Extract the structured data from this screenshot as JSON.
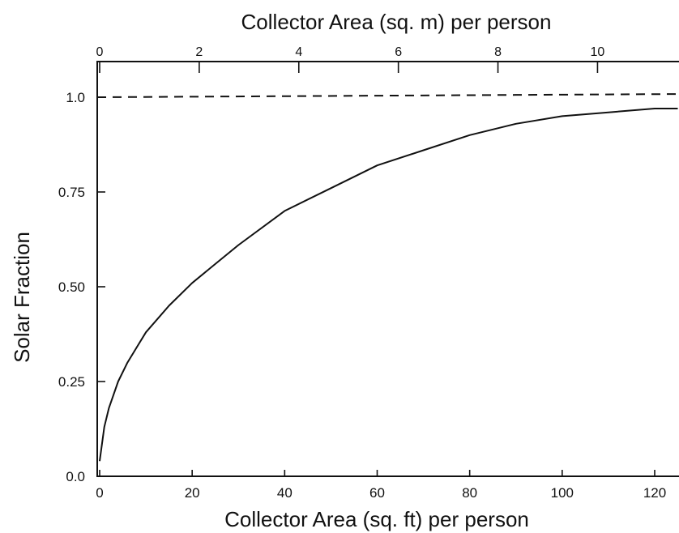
{
  "chart_data": {
    "type": "line",
    "title": "",
    "xlabel": "Collector Area (sq. ft) per person",
    "x2label": "Collector Area (sq. m) per person",
    "ylabel": "Solar Fraction",
    "xlim": [
      0,
      125
    ],
    "x2lim": [
      0,
      11.6
    ],
    "ylim": [
      0,
      1.1
    ],
    "x_ticks": [
      0,
      20,
      40,
      60,
      80,
      100,
      120
    ],
    "x_tick_labels": [
      "0",
      "20",
      "40",
      "60",
      "80",
      "100",
      "120"
    ],
    "x2_ticks": [
      0,
      2,
      4,
      6,
      8,
      10
    ],
    "x2_tick_labels": [
      "0",
      "2",
      "4",
      "6",
      "8",
      "10"
    ],
    "y_ticks": [
      0,
      0.25,
      0.5,
      0.75,
      1.0
    ],
    "y_tick_labels": [
      "0.0",
      "0.25",
      "0.50",
      "0.75",
      "1.0"
    ],
    "grid": false,
    "series": [
      {
        "style": "solid",
        "color": "#111111",
        "x": [
          0,
          1,
          2,
          4,
          6,
          8,
          10,
          15,
          20,
          25,
          30,
          40,
          50,
          60,
          70,
          80,
          90,
          100,
          110,
          120,
          125
        ],
        "y": [
          0.04,
          0.13,
          0.18,
          0.25,
          0.3,
          0.34,
          0.38,
          0.45,
          0.51,
          0.56,
          0.61,
          0.7,
          0.76,
          0.82,
          0.86,
          0.9,
          0.93,
          0.95,
          0.96,
          0.97,
          0.97
        ]
      },
      {
        "style": "dashed",
        "color": "#111111",
        "x": [
          0,
          125
        ],
        "y": [
          1.0,
          1.0
        ]
      }
    ]
  }
}
